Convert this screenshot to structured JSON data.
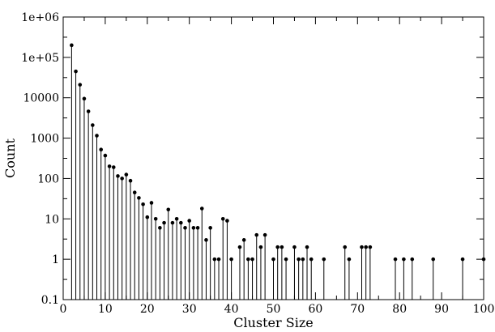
{
  "chart_data": {
    "type": "scatter",
    "style": "stem",
    "title": "",
    "xlabel": "Cluster Size",
    "ylabel": "Count",
    "xlim": [
      0,
      100
    ],
    "ylim": [
      0.1,
      1000000
    ],
    "yscale": "log",
    "grid": false,
    "x_ticks": [
      0,
      10,
      20,
      30,
      40,
      50,
      60,
      70,
      80,
      90,
      100
    ],
    "y_ticks": [
      {
        "value": 0.1,
        "label": "0.1"
      },
      {
        "value": 1,
        "label": "1"
      },
      {
        "value": 10,
        "label": "10"
      },
      {
        "value": 100,
        "label": "100"
      },
      {
        "value": 1000,
        "label": "1000"
      },
      {
        "value": 10000,
        "label": "10000"
      },
      {
        "value": 100000,
        "label": "1e+05"
      },
      {
        "value": 1000000,
        "label": "1e+06"
      }
    ],
    "points": [
      [
        2,
        200000
      ],
      [
        3,
        45000
      ],
      [
        4,
        21000
      ],
      [
        5,
        9500
      ],
      [
        6,
        4600
      ],
      [
        7,
        2100
      ],
      [
        8,
        1150
      ],
      [
        9,
        520
      ],
      [
        10,
        370
      ],
      [
        11,
        200
      ],
      [
        12,
        190
      ],
      [
        13,
        115
      ],
      [
        14,
        100
      ],
      [
        15,
        125
      ],
      [
        16,
        88
      ],
      [
        17,
        45
      ],
      [
        18,
        33
      ],
      [
        19,
        23
      ],
      [
        20,
        11
      ],
      [
        21,
        25
      ],
      [
        22,
        10
      ],
      [
        23,
        6
      ],
      [
        24,
        8
      ],
      [
        25,
        17
      ],
      [
        26,
        8
      ],
      [
        27,
        10
      ],
      [
        28,
        8
      ],
      [
        29,
        6
      ],
      [
        30,
        9
      ],
      [
        31,
        6
      ],
      [
        32,
        6
      ],
      [
        33,
        18
      ],
      [
        34,
        3
      ],
      [
        35,
        6
      ],
      [
        36,
        1
      ],
      [
        37,
        1
      ],
      [
        38,
        10
      ],
      [
        39,
        9
      ],
      [
        40,
        1
      ],
      [
        42,
        2
      ],
      [
        43,
        3
      ],
      [
        44,
        1
      ],
      [
        45,
        1
      ],
      [
        46,
        4
      ],
      [
        47,
        2
      ],
      [
        48,
        4
      ],
      [
        50,
        1
      ],
      [
        51,
        2
      ],
      [
        52,
        2
      ],
      [
        53,
        1
      ],
      [
        55,
        2
      ],
      [
        56,
        1
      ],
      [
        57,
        1
      ],
      [
        58,
        2
      ],
      [
        59,
        1
      ],
      [
        62,
        1
      ],
      [
        67,
        2
      ],
      [
        68,
        1
      ],
      [
        71,
        2
      ],
      [
        72,
        2
      ],
      [
        73,
        2
      ],
      [
        79,
        1
      ],
      [
        81,
        1
      ],
      [
        83,
        1
      ],
      [
        88,
        1
      ],
      [
        95,
        1
      ],
      [
        100,
        1
      ]
    ],
    "marker_color": "#000000"
  }
}
